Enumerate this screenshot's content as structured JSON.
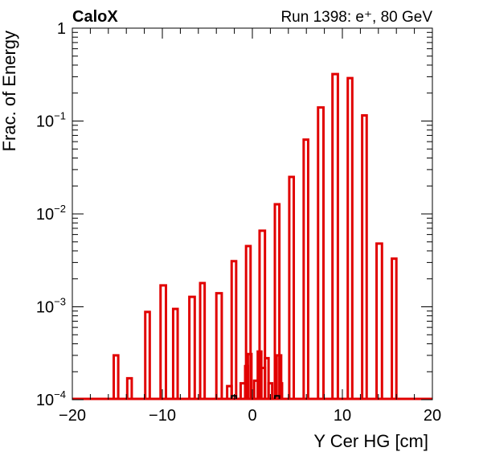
{
  "header": {
    "experiment": "CaloX",
    "run_info": "Run 1398: e⁺, 80 GeV"
  },
  "chart_data": {
    "type": "histogram",
    "xlabel": "Y Cer HG [cm]",
    "ylabel": "Frac. of Energy",
    "xlim": [
      -20,
      20
    ],
    "ylim": [
      0.0001,
      1
    ],
    "yscale": "log",
    "grid": false,
    "legend": "none",
    "x_ticks": [
      "−20",
      "−10",
      "0",
      "10",
      "20"
    ],
    "y_ticks": [
      {
        "value": 1,
        "base": "1",
        "exp": ""
      },
      {
        "value": 0.1,
        "base": "10",
        "exp": "−1"
      },
      {
        "value": 0.01,
        "base": "10",
        "exp": "−2"
      },
      {
        "value": 0.001,
        "base": "10",
        "exp": "−3"
      },
      {
        "value": 0.0001,
        "base": "10",
        "exp": "−4"
      }
    ],
    "colors": {
      "red_series": "#e10000",
      "black_series": "#000000"
    },
    "series": [
      {
        "color": "#e10000",
        "bins": [
          {
            "x0": -15.4,
            "x1": -14.9,
            "value": 0.0003
          },
          {
            "x0": -13.9,
            "x1": -13.4,
            "value": 0.00017
          },
          {
            "x0": -11.9,
            "x1": -11.4,
            "value": 0.00088
          },
          {
            "x0": -10.2,
            "x1": -9.6,
            "value": 0.0017
          },
          {
            "x0": -8.8,
            "x1": -8.3,
            "value": 0.00095
          },
          {
            "x0": -7.0,
            "x1": -6.4,
            "value": 0.00128
          },
          {
            "x0": -5.8,
            "x1": -5.3,
            "value": 0.0018
          },
          {
            "x0": -4.0,
            "x1": -3.4,
            "value": 0.0014
          },
          {
            "x0": -2.3,
            "x1": -1.8,
            "value": 0.0031
          },
          {
            "x0": -0.7,
            "x1": -0.2,
            "value": 0.0045
          },
          {
            "x0": 0.8,
            "x1": 1.4,
            "value": 0.0066
          },
          {
            "x0": 2.5,
            "x1": 3.0,
            "value": 0.0127
          },
          {
            "x0": 4.1,
            "x1": 4.6,
            "value": 0.025
          },
          {
            "x0": 5.7,
            "x1": 6.2,
            "value": 0.063
          },
          {
            "x0": 7.3,
            "x1": 7.9,
            "value": 0.14
          },
          {
            "x0": 8.9,
            "x1": 9.5,
            "value": 0.32
          },
          {
            "x0": 10.6,
            "x1": 11.1,
            "value": 0.29
          },
          {
            "x0": 12.2,
            "x1": 12.7,
            "value": 0.115
          },
          {
            "x0": 13.8,
            "x1": 14.4,
            "value": 0.0048
          },
          {
            "x0": 15.5,
            "x1": 16.0,
            "value": 0.0033
          }
        ]
      },
      {
        "color": "#e10000",
        "bins": [
          {
            "x0": -2.8,
            "x1": -2.3,
            "value": 0.00014
          },
          {
            "x0": -1.3,
            "x1": -0.8,
            "value": 0.00015
          },
          {
            "x0": -0.8,
            "x1": -0.5,
            "value": 0.00023
          },
          {
            "x0": -0.5,
            "x1": -0.1,
            "value": 0.00031
          },
          {
            "x0": 0.2,
            "x1": 0.6,
            "value": 0.00016
          },
          {
            "x0": 0.6,
            "x1": 1.0,
            "value": 0.00033
          },
          {
            "x0": 1.0,
            "x1": 1.4,
            "value": 0.00022
          },
          {
            "x0": 1.4,
            "x1": 1.8,
            "value": 0.00028
          },
          {
            "x0": 1.8,
            "x1": 2.2,
            "value": 0.00015
          },
          {
            "x0": 2.7,
            "x1": 3.2,
            "value": 0.0003
          },
          {
            "x0": 3.2,
            "x1": 3.3,
            "value": 0.00015
          }
        ]
      },
      {
        "color": "#000000",
        "bins": [
          {
            "x0": -2.3,
            "x1": -1.8,
            "value": 0.00011
          },
          {
            "x0": 2.5,
            "x1": 3.0,
            "value": 0.00011
          }
        ]
      }
    ]
  }
}
